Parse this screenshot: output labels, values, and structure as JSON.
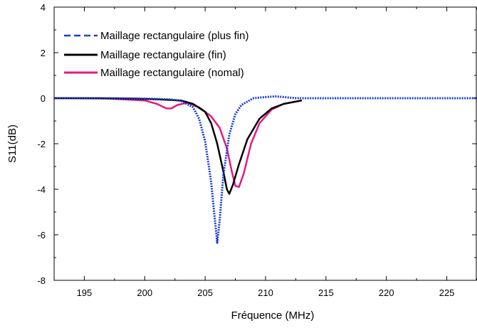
{
  "chart_data": {
    "type": "line",
    "xlabel": "Fréquence (MHz)",
    "ylabel": "S11(dB)",
    "xlim": [
      192.5,
      227.5
    ],
    "ylim": [
      -8,
      4
    ],
    "x_ticks": [
      "195",
      "200",
      "205",
      "210",
      "215",
      "220",
      "225"
    ],
    "y_ticks": [
      "4",
      "2",
      "0",
      "-2",
      "-4",
      "-6",
      "-8"
    ],
    "legend_position": "top-left",
    "series": [
      {
        "name": "Maillage rectangulaire (plus fin)",
        "color": "#1a3fd4",
        "style": "dash-dot",
        "points": [
          [
            192.5,
            0
          ],
          [
            196,
            0
          ],
          [
            198,
            -0.01
          ],
          [
            200,
            -0.02
          ],
          [
            202,
            -0.05
          ],
          [
            203,
            -0.12
          ],
          [
            204,
            -0.4
          ],
          [
            204.5,
            -0.9
          ],
          [
            205,
            -1.9
          ],
          [
            205.5,
            -3.7
          ],
          [
            205.8,
            -5.3
          ],
          [
            206,
            -6.35
          ],
          [
            206.2,
            -5.4
          ],
          [
            206.5,
            -3.4
          ],
          [
            207,
            -1.6
          ],
          [
            207.5,
            -0.7
          ],
          [
            208,
            -0.3
          ],
          [
            209,
            0
          ],
          [
            210,
            0.05
          ],
          [
            210.8,
            0.08
          ],
          [
            211.5,
            0.05
          ],
          [
            212.5,
            0
          ],
          [
            215,
            0
          ],
          [
            220,
            0
          ],
          [
            227.5,
            0
          ]
        ]
      },
      {
        "name": "Maillage rectangulaire (fin)",
        "color": "#000000",
        "style": "solid",
        "points": [
          [
            192.5,
            0
          ],
          [
            196,
            0
          ],
          [
            199,
            -0.02
          ],
          [
            201,
            -0.05
          ],
          [
            203,
            -0.1
          ],
          [
            204,
            -0.25
          ],
          [
            205,
            -0.6
          ],
          [
            205.5,
            -1.1
          ],
          [
            206,
            -2.0
          ],
          [
            206.5,
            -3.2
          ],
          [
            206.8,
            -4.0
          ],
          [
            207,
            -4.2
          ],
          [
            207.3,
            -3.8
          ],
          [
            207.8,
            -2.9
          ],
          [
            208.5,
            -1.8
          ],
          [
            209.5,
            -0.9
          ],
          [
            210.5,
            -0.45
          ],
          [
            211.5,
            -0.25
          ],
          [
            213,
            -0.1
          ]
        ]
      },
      {
        "name": "Maillage rectangulaire (nomal)",
        "color": "#e8197f",
        "style": "solid",
        "points": [
          [
            192.5,
            0
          ],
          [
            197,
            -0.02
          ],
          [
            200,
            -0.1
          ],
          [
            201,
            -0.25
          ],
          [
            201.8,
            -0.45
          ],
          [
            202.2,
            -0.45
          ],
          [
            202.7,
            -0.3
          ],
          [
            203.5,
            -0.2
          ],
          [
            204.5,
            -0.4
          ],
          [
            205.5,
            -0.8
          ],
          [
            206.2,
            -1.3
          ],
          [
            206.8,
            -2.2
          ],
          [
            207.2,
            -3.2
          ],
          [
            207.5,
            -3.85
          ],
          [
            207.8,
            -3.9
          ],
          [
            208.2,
            -3.3
          ],
          [
            208.8,
            -2.0
          ],
          [
            209.5,
            -1.1
          ],
          [
            210.5,
            -0.5
          ],
          [
            211.5,
            -0.25
          ],
          [
            213,
            -0.1
          ]
        ]
      }
    ]
  }
}
